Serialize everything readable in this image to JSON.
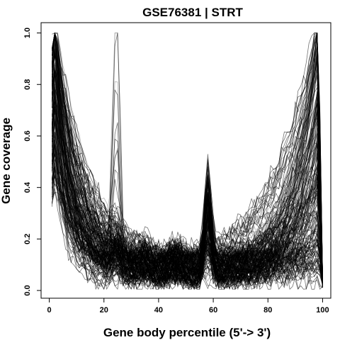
{
  "chart_data": {
    "type": "line",
    "title": "GSE76381 | STRT",
    "xlabel": "Gene body percentile (5'-> 3')",
    "ylabel": "Gene coverage",
    "xlim": [
      -3,
      103
    ],
    "ylim": [
      -0.03,
      1.04
    ],
    "xticks": [
      0,
      20,
      40,
      60,
      80,
      100
    ],
    "yticks": [
      0.0,
      0.2,
      0.4,
      0.6,
      0.8,
      1.0
    ],
    "xtick_labels": [
      "0",
      "20",
      "40",
      "60",
      "80",
      "100"
    ],
    "ytick_labels": [
      "0.0",
      "0.2",
      "0.4",
      "0.6",
      "0.8",
      "1.0"
    ],
    "grid": false,
    "legend": "none",
    "line_color": "#000000",
    "x": [
      1,
      3,
      5,
      7,
      9,
      11,
      13,
      15,
      17,
      19,
      21,
      23,
      25,
      27,
      29,
      31,
      33,
      35,
      37,
      39,
      41,
      43,
      45,
      47,
      49,
      51,
      53,
      55,
      57,
      59,
      61,
      63,
      65,
      67,
      69,
      71,
      73,
      75,
      77,
      79,
      81,
      83,
      85,
      87,
      89,
      91,
      93,
      95,
      97,
      99,
      100
    ],
    "typical_profile": [
      0.82,
      0.9,
      0.8,
      0.62,
      0.46,
      0.3,
      0.2,
      0.14,
      0.12,
      0.11,
      0.11,
      0.13,
      0.15,
      0.11,
      0.08,
      0.07,
      0.07,
      0.09,
      0.08,
      0.07,
      0.07,
      0.08,
      0.09,
      0.08,
      0.07,
      0.08,
      0.08,
      0.1,
      0.22,
      0.14,
      0.08,
      0.08,
      0.09,
      0.1,
      0.11,
      0.12,
      0.13,
      0.15,
      0.17,
      0.19,
      0.21,
      0.23,
      0.26,
      0.3,
      0.35,
      0.42,
      0.5,
      0.6,
      0.7,
      0.55,
      0.1
    ],
    "series_count": 180
  }
}
